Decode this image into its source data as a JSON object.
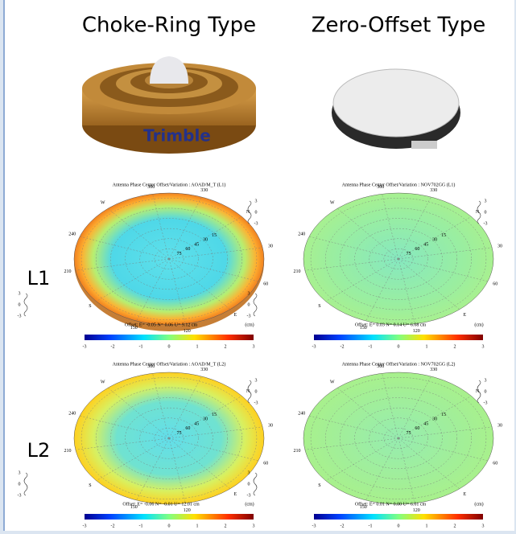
{
  "header": {
    "left": "Choke-Ring Type",
    "right": "Zero-Offset Type"
  },
  "photo": {
    "brand": "Trimble"
  },
  "row_labels": [
    "L1",
    "L2"
  ],
  "plots": [
    {
      "title": "Antenna Phase Center Offset/Variation : AOAD/M_T (L1)",
      "offset": "Offset: E= -0.05  N= 0.06 U= 9.12 cm"
    },
    {
      "title": "Antenna Phase Center Offset/Variation : NOV702GG (L1)",
      "offset": "Offset: E=  0.03  N= 0.14 U= 6.68 cm"
    },
    {
      "title": "Antenna Phase Center Offset/Variation : AOAD/M_T (L2)",
      "offset": "Offset: E= -0.06  N= -0.01 U= 12.01 cm"
    },
    {
      "title": "Antenna Phase Center Offset/Variation : NOV702GG (L2)",
      "offset": "Offset: E=  0.01  N= 0.00 U= 6.61 cm"
    }
  ],
  "azimuth_labels": [
    "N",
    "30",
    "60",
    "E",
    "120",
    "150",
    "S",
    "210",
    "240",
    "W",
    "300",
    "330"
  ],
  "elevation_labels": [
    "15",
    "30",
    "45",
    "60",
    "75"
  ],
  "scale_labels": [
    "3",
    "0",
    "-3"
  ],
  "colorbar_ticks": [
    "-3",
    "-2",
    "-1",
    "0",
    "1",
    "2",
    "3"
  ],
  "unit": "(cm)"
}
